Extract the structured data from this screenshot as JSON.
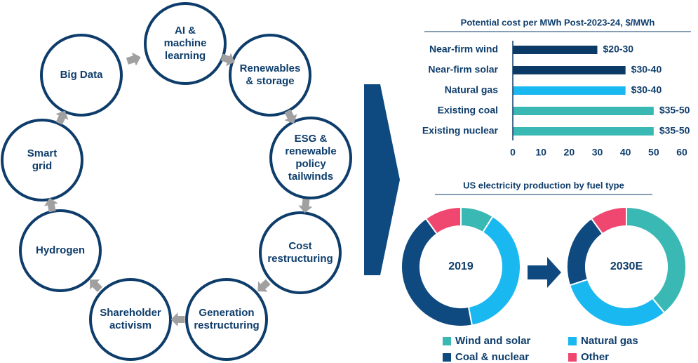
{
  "cycle": {
    "nodes": [
      {
        "lines": [
          "AI &",
          "machine",
          "learning"
        ]
      },
      {
        "lines": [
          "Renewables",
          "& storage"
        ]
      },
      {
        "lines": [
          "ESG &",
          "renewable",
          "policy",
          "tailwinds"
        ]
      },
      {
        "lines": [
          "Cost",
          "restructuring"
        ]
      },
      {
        "lines": [
          "Generation",
          "restructuring"
        ]
      },
      {
        "lines": [
          "Shareholder",
          "activism"
        ]
      },
      {
        "lines": [
          "Hydrogen"
        ]
      },
      {
        "lines": [
          "Smart",
          "grid"
        ]
      },
      {
        "lines": [
          "Big Data"
        ]
      }
    ]
  },
  "chart_data": [
    {
      "type": "bar",
      "orientation": "horizontal",
      "title": "Potential cost per MWh Post-2023-24, $/MWh",
      "categories": [
        "Near-firm wind",
        "Near-firm solar",
        "Natural gas",
        "Existing coal",
        "Existing nuclear"
      ],
      "values": [
        30,
        40,
        40,
        50,
        50
      ],
      "value_labels": [
        "$20-30",
        "$30-40",
        "$30-40",
        "$35-50",
        "$35-50"
      ],
      "colors": [
        "#0b3a66",
        "#0b3a66",
        "#1ab8f0",
        "#3ab8b4",
        "#3ab8b4"
      ],
      "xlim": [
        0,
        60
      ],
      "xticks": [
        0,
        10,
        20,
        30,
        40,
        50,
        60
      ]
    },
    {
      "type": "donut",
      "title": "US electricity production by fuel type",
      "label": "2019",
      "categories": [
        "Wind and solar",
        "Natural gas",
        "Coal & nuclear",
        "Other"
      ],
      "colors": [
        "#3ab8b4",
        "#1ab8f0",
        "#0e4a80",
        "#ef476f"
      ],
      "values": [
        9,
        38,
        43,
        10
      ]
    },
    {
      "type": "donut",
      "label": "2030E",
      "values": [
        39,
        31,
        20,
        10
      ]
    }
  ]
}
